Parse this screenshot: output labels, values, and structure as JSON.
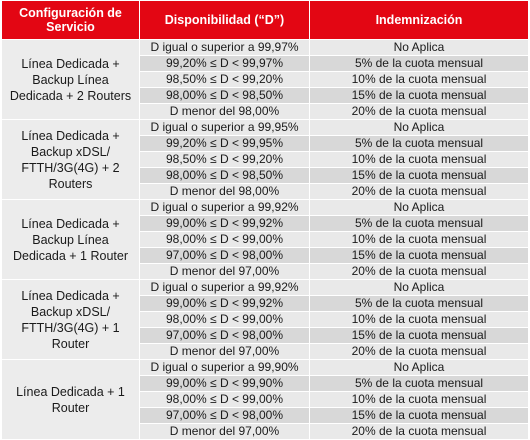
{
  "headers": {
    "service": "Configuración de Servicio",
    "availability": "Disponibilidad (“D”)",
    "compensation": "Indemnización"
  },
  "groups": [
    {
      "service": "Línea Dedicada + Backup Línea Dedicada + 2 Routers",
      "rows": [
        {
          "availability": "D igual o superior a 99,97%",
          "compensation": "No Aplica"
        },
        {
          "availability": "99,20% ≤  D  < 99,97%",
          "compensation": "5% de la cuota mensual"
        },
        {
          "availability": "98,50% ≤  D  < 99,20%",
          "compensation": "10% de la cuota mensual"
        },
        {
          "availability": "98,00% ≤  D  < 98,50%",
          "compensation": "15% de la cuota mensual"
        },
        {
          "availability": "D menor del 98,00%",
          "compensation": "20% de la cuota mensual"
        }
      ]
    },
    {
      "service": "Línea Dedicada + Backup xDSL/ FTTH/3G(4G) + 2 Routers",
      "rows": [
        {
          "availability": "D igual o superior a 99,95%",
          "compensation": "No Aplica"
        },
        {
          "availability": "99,20% ≤  D  < 99,95%",
          "compensation": "5% de la cuota mensual"
        },
        {
          "availability": "98,50% ≤  D  < 99,20%",
          "compensation": "10% de la cuota mensual"
        },
        {
          "availability": "98,00% ≤  D  < 98,50%",
          "compensation": "15% de la cuota mensual"
        },
        {
          "availability": "D menor del 98,00%",
          "compensation": "20% de la cuota mensual"
        }
      ]
    },
    {
      "service": "Línea Dedicada + Backup Línea Dedicada + 1 Router",
      "rows": [
        {
          "availability": "D igual o superior a 99,92%",
          "compensation": "No Aplica"
        },
        {
          "availability": "99,00% ≤  D  < 99,92%",
          "compensation": "5% de la cuota mensual"
        },
        {
          "availability": "98,00% ≤  D  < 99,00%",
          "compensation": "10% de la cuota mensual"
        },
        {
          "availability": "97,00% ≤  D  < 98,00%",
          "compensation": "15% de la cuota mensual"
        },
        {
          "availability": "D menor del 97,00%",
          "compensation": "20% de la cuota mensual"
        }
      ]
    },
    {
      "service": "Línea Dedicada + Backup xDSL/ FTTH/3G(4G) + 1 Router",
      "rows": [
        {
          "availability": "D igual o superior a 99,92%",
          "compensation": "No Aplica"
        },
        {
          "availability": "99,00% ≤  D  < 99,92%",
          "compensation": "5% de la cuota mensual"
        },
        {
          "availability": "98,00% ≤  D  < 99,00%",
          "compensation": "10% de la cuota mensual"
        },
        {
          "availability": "97,00% ≤  D  < 98,00%",
          "compensation": "15% de la cuota mensual"
        },
        {
          "availability": "D menor del 97,00%",
          "compensation": "20% de la cuota mensual"
        }
      ]
    },
    {
      "service": "Línea Dedicada + 1 Router",
      "rows": [
        {
          "availability": "D igual o superior a 99,90%",
          "compensation": "No Aplica"
        },
        {
          "availability": "99,00% ≤  D  < 99,90%",
          "compensation": "5% de la cuota mensual"
        },
        {
          "availability": "98,00% ≤  D  < 99,00%",
          "compensation": "10% de la cuota mensual"
        },
        {
          "availability": "97,00% ≤  D  < 98,00%",
          "compensation": "15% de la cuota mensual"
        },
        {
          "availability": "D menor del 97,00%",
          "compensation": "20% de la cuota mensual"
        }
      ]
    }
  ]
}
